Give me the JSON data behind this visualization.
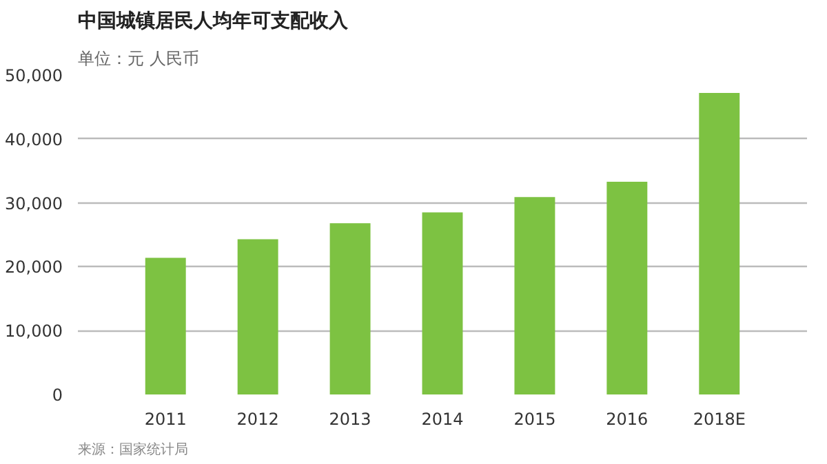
{
  "chart_data": {
    "type": "bar",
    "title": "中国城镇居民人均年可支配收入",
    "subtitle": "单位：元 人民币",
    "categories": [
      "2011",
      "2012",
      "2013",
      "2014",
      "2015",
      "2016",
      "2018E"
    ],
    "values": [
      21400,
      24300,
      26800,
      28500,
      30900,
      33300,
      47200
    ],
    "color": "#7dc242",
    "ylim": [
      0,
      50000
    ],
    "yticks": [
      0,
      {
        "value": 10000,
        "label": "10,000"
      },
      {
        "value": 20000,
        "label": "20,000"
      },
      {
        "value": 30000,
        "label": "30,000"
      },
      {
        "value": 40000,
        "label": "40,000"
      },
      {
        "value": 50000,
        "label": "50,000"
      }
    ],
    "grid": "y",
    "annotations": [
      "来源：国家统计局"
    ]
  }
}
